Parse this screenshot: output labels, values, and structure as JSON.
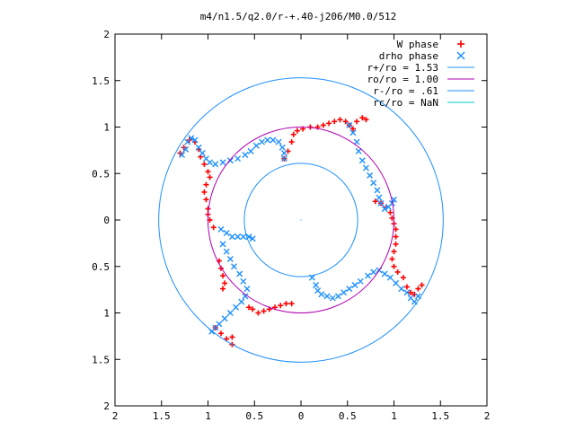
{
  "chart_data": {
    "type": "scatter",
    "title": "m4/n1.5/q2.0/r-+.40-j206/M0.0/512",
    "xlim": [
      -2,
      2
    ],
    "ylim": [
      -2,
      2
    ],
    "x_ticks": [
      "2",
      "1.5",
      "1",
      "0.5",
      "0",
      "0.5",
      "1",
      "1.5",
      "2"
    ],
    "y_ticks": [
      "2",
      "1.5",
      "1",
      "0.5",
      "0",
      "0.5",
      "1",
      "1.5",
      "2"
    ],
    "grid": false,
    "legend_position": "top-right",
    "series": [
      {
        "name": "W phase",
        "kind": "points",
        "marker": "plus",
        "color": "#ff0000",
        "points": [
          [
            -1.3,
            0.72
          ],
          [
            -1.26,
            0.78
          ],
          [
            -1.2,
            0.86
          ],
          [
            -1.14,
            0.84
          ],
          [
            -1.1,
            0.76
          ],
          [
            -1.08,
            0.68
          ],
          [
            -1.04,
            0.6
          ],
          [
            -1.0,
            0.52
          ],
          [
            -0.98,
            0.46
          ],
          [
            -1.02,
            0.38
          ],
          [
            -1.04,
            0.3
          ],
          [
            -1.02,
            0.22
          ],
          [
            -1.0,
            0.12
          ],
          [
            -1.0,
            0.06
          ],
          [
            -0.98,
            0.0
          ],
          [
            -0.94,
            -0.08
          ],
          [
            -0.88,
            -0.44
          ],
          [
            -0.86,
            -0.52
          ],
          [
            -0.84,
            -0.6
          ],
          [
            -0.82,
            -0.68
          ],
          [
            -0.84,
            -0.74
          ],
          [
            -0.92,
            -1.16
          ],
          [
            -0.86,
            -1.22
          ],
          [
            -0.8,
            -1.28
          ],
          [
            -0.74,
            -1.34
          ],
          [
            -0.74,
            -1.26
          ],
          [
            -0.56,
            -0.94
          ],
          [
            -0.52,
            -0.96
          ],
          [
            -0.46,
            -1.0
          ],
          [
            -0.4,
            -0.98
          ],
          [
            -0.34,
            -0.96
          ],
          [
            -0.28,
            -0.94
          ],
          [
            -0.22,
            -0.92
          ],
          [
            -0.16,
            -0.9
          ],
          [
            -0.1,
            -0.9
          ],
          [
            -0.18,
            0.66
          ],
          [
            -0.14,
            0.74
          ],
          [
            -0.1,
            0.84
          ],
          [
            -0.08,
            0.92
          ],
          [
            -0.04,
            0.96
          ],
          [
            0.02,
            0.98
          ],
          [
            0.1,
            1.0
          ],
          [
            0.18,
            1.0
          ],
          [
            0.24,
            1.02
          ],
          [
            0.3,
            1.04
          ],
          [
            0.36,
            1.06
          ],
          [
            0.42,
            1.08
          ],
          [
            0.48,
            1.06
          ],
          [
            0.52,
            1.02
          ],
          [
            0.56,
            0.98
          ],
          [
            0.6,
            1.06
          ],
          [
            0.66,
            1.1
          ],
          [
            0.7,
            1.08
          ],
          [
            0.8,
            0.2
          ],
          [
            0.86,
            0.18
          ],
          [
            0.92,
            0.14
          ],
          [
            0.96,
            0.08
          ],
          [
            0.98,
            0.02
          ],
          [
            1.0,
            -0.04
          ],
          [
            1.02,
            -0.1
          ],
          [
            1.02,
            -0.18
          ],
          [
            1.02,
            -0.26
          ],
          [
            1.0,
            -0.34
          ],
          [
            0.98,
            -0.42
          ],
          [
            1.0,
            -0.5
          ],
          [
            1.04,
            -0.56
          ],
          [
            1.1,
            -0.62
          ],
          [
            1.14,
            -0.72
          ],
          [
            1.18,
            -0.78
          ],
          [
            1.22,
            -0.8
          ],
          [
            1.26,
            -0.74
          ],
          [
            1.3,
            -0.7
          ]
        ]
      },
      {
        "name": "drho phase",
        "kind": "points",
        "marker": "cross",
        "color": "#1e90ff",
        "points": [
          [
            -1.28,
            0.7
          ],
          [
            -1.24,
            0.76
          ],
          [
            -1.22,
            0.84
          ],
          [
            -1.18,
            0.88
          ],
          [
            -1.14,
            0.86
          ],
          [
            -1.1,
            0.78
          ],
          [
            -1.06,
            0.72
          ],
          [
            -1.02,
            0.66
          ],
          [
            -0.98,
            0.62
          ],
          [
            -0.92,
            0.6
          ],
          [
            -0.84,
            0.62
          ],
          [
            -0.76,
            0.64
          ],
          [
            -0.68,
            0.66
          ],
          [
            -0.6,
            0.7
          ],
          [
            -0.54,
            0.74
          ],
          [
            -0.48,
            0.8
          ],
          [
            -0.42,
            0.84
          ],
          [
            -0.36,
            0.86
          ],
          [
            -0.3,
            0.86
          ],
          [
            -0.24,
            0.84
          ],
          [
            -0.2,
            0.78
          ],
          [
            -0.18,
            0.72
          ],
          [
            -0.18,
            0.66
          ],
          [
            -0.86,
            -0.1
          ],
          [
            -0.8,
            -0.14
          ],
          [
            -0.74,
            -0.18
          ],
          [
            -0.68,
            -0.18
          ],
          [
            -0.62,
            -0.18
          ],
          [
            -0.56,
            -0.18
          ],
          [
            -0.52,
            -0.2
          ],
          [
            -0.84,
            -0.26
          ],
          [
            -0.8,
            -0.34
          ],
          [
            -0.76,
            -0.42
          ],
          [
            -0.72,
            -0.5
          ],
          [
            -0.66,
            -0.58
          ],
          [
            -0.62,
            -0.66
          ],
          [
            -0.58,
            -0.74
          ],
          [
            -0.6,
            -0.82
          ],
          [
            -0.64,
            -0.88
          ],
          [
            -0.7,
            -0.94
          ],
          [
            -0.76,
            -1.0
          ],
          [
            -0.82,
            -1.06
          ],
          [
            -0.88,
            -1.12
          ],
          [
            -0.92,
            -1.16
          ],
          [
            -0.96,
            -1.2
          ],
          [
            0.12,
            -0.62
          ],
          [
            0.16,
            -0.7
          ],
          [
            0.18,
            -0.76
          ],
          [
            0.22,
            -0.8
          ],
          [
            0.28,
            -0.82
          ],
          [
            0.34,
            -0.84
          ],
          [
            0.4,
            -0.82
          ],
          [
            0.46,
            -0.78
          ],
          [
            0.52,
            -0.74
          ],
          [
            0.58,
            -0.7
          ],
          [
            0.64,
            -0.66
          ],
          [
            0.72,
            -0.6
          ],
          [
            0.78,
            -0.56
          ],
          [
            0.84,
            -0.54
          ],
          [
            0.9,
            -0.58
          ],
          [
            0.96,
            -0.62
          ],
          [
            1.02,
            -0.68
          ],
          [
            1.08,
            -0.74
          ],
          [
            1.14,
            -0.78
          ],
          [
            1.18,
            -0.84
          ],
          [
            1.22,
            -0.88
          ],
          [
            1.26,
            -0.82
          ],
          [
            0.52,
            1.02
          ],
          [
            0.56,
            0.94
          ],
          [
            0.6,
            0.84
          ],
          [
            0.62,
            0.74
          ],
          [
            0.66,
            0.64
          ],
          [
            0.7,
            0.56
          ],
          [
            0.74,
            0.48
          ],
          [
            0.78,
            0.4
          ],
          [
            0.82,
            0.32
          ],
          [
            0.84,
            0.24
          ],
          [
            0.86,
            0.18
          ],
          [
            0.9,
            0.12
          ],
          [
            0.94,
            0.14
          ],
          [
            0.98,
            0.18
          ],
          [
            1.0,
            0.22
          ]
        ]
      },
      {
        "name": "r+/ro = 1.53",
        "kind": "circle",
        "radius": 1.53,
        "color": "#1e90ff"
      },
      {
        "name": "ro/ro = 1.00",
        "kind": "circle",
        "radius": 1.0,
        "color": "#b000b0"
      },
      {
        "name": "r-/ro = .61",
        "kind": "circle",
        "radius": 0.61,
        "color": "#1e90ff"
      },
      {
        "name": "rc/ro = NaN",
        "kind": "circle",
        "radius": null,
        "color": "#00ced1"
      }
    ]
  }
}
